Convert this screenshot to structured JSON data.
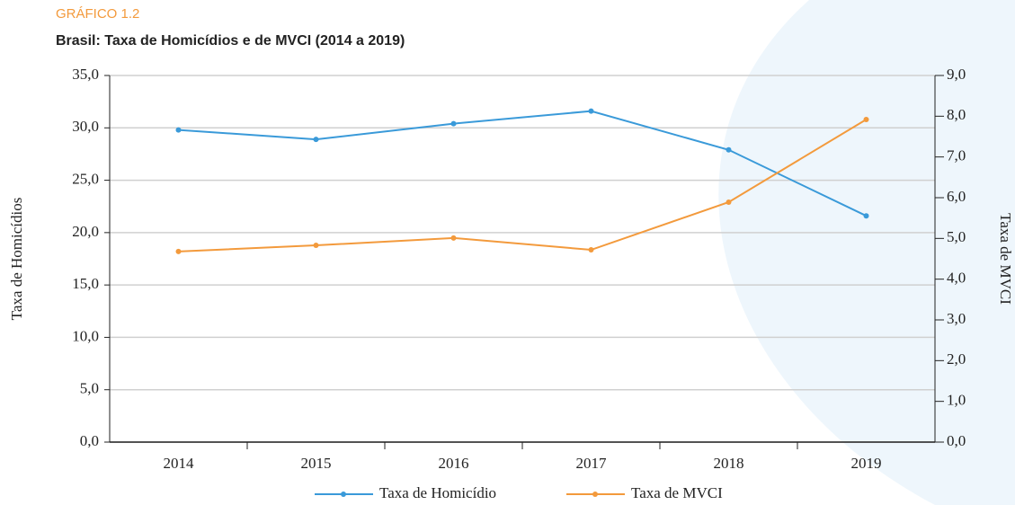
{
  "chart_data": {
    "type": "line",
    "kicker": "GRÁFICO 1.2",
    "title": "Brasil: Taxa de Homicídios e de MVCI (2014 a 2019)",
    "ylabel": "Taxa de Homicídios",
    "y2label": "Taxa de MVCI",
    "categories": [
      "2014",
      "2015",
      "2016",
      "2017",
      "2018",
      "2019"
    ],
    "series": [
      {
        "name": "Taxa de Homicídio",
        "color": "#3a9ad9",
        "values": [
          29.8,
          28.9,
          30.4,
          31.6,
          27.9,
          21.6
        ]
      },
      {
        "name": "Taxa de MVCI",
        "color": "#f39a3c",
        "axis": "y2",
        "values": [
          4.68,
          4.83,
          5.01,
          4.72,
          5.89,
          7.92
        ]
      }
    ],
    "ylim": [
      0,
      35
    ],
    "yticks": [
      {
        "value": 0,
        "label": "0,0"
      },
      {
        "value": 5,
        "label": "5,0"
      },
      {
        "value": 10,
        "label": "10,0"
      },
      {
        "value": 15,
        "label": "15,0"
      },
      {
        "value": 20,
        "label": "20,0"
      },
      {
        "value": 25,
        "label": "25,0"
      },
      {
        "value": 30,
        "label": "30,0"
      },
      {
        "value": 35,
        "label": "35,0"
      }
    ],
    "y2lim": [
      0,
      9
    ],
    "y2ticks": [
      {
        "value": 0,
        "label": "0,0"
      },
      {
        "value": 1,
        "label": "1,0"
      },
      {
        "value": 2,
        "label": "2,0"
      },
      {
        "value": 3,
        "label": "3,0"
      },
      {
        "value": 4,
        "label": "4,0"
      },
      {
        "value": 5,
        "label": "5,0"
      },
      {
        "value": 6,
        "label": "6,0"
      },
      {
        "value": 7,
        "label": "7,0"
      },
      {
        "value": 8,
        "label": "8,0"
      },
      {
        "value": 9,
        "label": "9,0"
      }
    ],
    "grid": true,
    "legend": "bottom"
  }
}
